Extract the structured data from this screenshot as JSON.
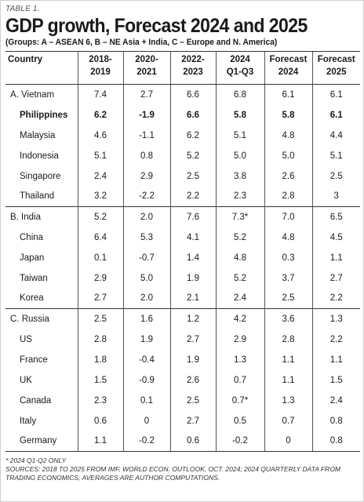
{
  "table_label": "TABLE 1.",
  "title": "GDP growth, Forecast 2024 and 2025",
  "subtitle": "(Groups: A – ASEAN 6, B – NE Asia + India, C – Europe and N. America)",
  "headers": {
    "country": "Country",
    "c1_line1": "2018-",
    "c1_line2": "2019",
    "c2_line1": "2020-",
    "c2_line2": "2021",
    "c3_line1": "2022-",
    "c3_line2": "2023",
    "c4_line1": "2024",
    "c4_line2": "Q1-Q3",
    "c5_line1": "Forecast",
    "c5_line2": "2024",
    "c6_line1": "Forecast",
    "c6_line2": "2025"
  },
  "rows": [
    {
      "country": "A. Vietnam",
      "v1": "7.4",
      "v2": "2.7",
      "v3": "6.6",
      "v4": "6.8",
      "v5": "6.1",
      "v6": "6.1"
    },
    {
      "country": "Philippines",
      "v1": "6.2",
      "v2": "-1.9",
      "v3": "6.6",
      "v4": "5.8",
      "v5": "5.8",
      "v6": "6.1"
    },
    {
      "country": "Malaysia",
      "v1": "4.6",
      "v2": "-1.1",
      "v3": "6.2",
      "v4": "5.1",
      "v5": "4.8",
      "v6": "4.4"
    },
    {
      "country": "Indonesia",
      "v1": "5.1",
      "v2": "0.8",
      "v3": "5.2",
      "v4": "5.0",
      "v5": "5.0",
      "v6": "5.1"
    },
    {
      "country": "Singapore",
      "v1": "2.4",
      "v2": "2.9",
      "v3": "2.5",
      "v4": "3.8",
      "v5": "2.6",
      "v6": "2.5"
    },
    {
      "country": "Thailand",
      "v1": "3.2",
      "v2": "-2.2",
      "v3": "2.2",
      "v4": "2.3",
      "v5": "2.8",
      "v6": "3"
    },
    {
      "country": "B. India",
      "v1": "5.2",
      "v2": "2.0",
      "v3": "7.6",
      "v4": "7.3*",
      "v5": "7.0",
      "v6": "6.5"
    },
    {
      "country": "China",
      "v1": "6.4",
      "v2": "5.3",
      "v3": "4.1",
      "v4": "5.2",
      "v5": "4.8",
      "v6": "4.5"
    },
    {
      "country": "Japan",
      "v1": "0.1",
      "v2": "-0.7",
      "v3": "1.4",
      "v4": "4.8",
      "v5": "0.3",
      "v6": "1.1"
    },
    {
      "country": "Taiwan",
      "v1": "2.9",
      "v2": "5.0",
      "v3": "1.9",
      "v4": "5.2",
      "v5": "3.7",
      "v6": "2.7"
    },
    {
      "country": "Korea",
      "v1": "2.7",
      "v2": "2.0",
      "v3": "2.1",
      "v4": "2.4",
      "v5": "2.5",
      "v6": "2.2"
    },
    {
      "country": "C. Russia",
      "v1": "2.5",
      "v2": "1.6",
      "v3": "1.2",
      "v4": "4.2",
      "v5": "3.6",
      "v6": "1.3"
    },
    {
      "country": "US",
      "v1": "2.8",
      "v2": "1.9",
      "v3": "2.7",
      "v4": "2.9",
      "v5": "2.8",
      "v6": "2.2"
    },
    {
      "country": "France",
      "v1": "1.8",
      "v2": "-0.4",
      "v3": "1.9",
      "v4": "1.3",
      "v5": "1.1",
      "v6": "1.1"
    },
    {
      "country": "UK",
      "v1": "1.5",
      "v2": "-0.9",
      "v3": "2.6",
      "v4": "0.7",
      "v5": "1.1",
      "v6": "1.5"
    },
    {
      "country": "Canada",
      "v1": "2.3",
      "v2": "0.1",
      "v3": "2.5",
      "v4": "0.7*",
      "v5": "1.3",
      "v6": "2.4"
    },
    {
      "country": "Italy",
      "v1": "0.6",
      "v2": "0",
      "v3": "2.7",
      "v4": "0.5",
      "v5": "0.7",
      "v6": "0.8"
    },
    {
      "country": "Germany",
      "v1": "1.1",
      "v2": "-0.2",
      "v3": "0.6",
      "v4": "-0.2",
      "v5": "0",
      "v6": "0.8"
    }
  ],
  "footnote_1": "* 2024 Q1-Q2 only",
  "footnote_2": "Sources: 2018 to 2025 from IMF, World Econ. Outlook, Oct. 2024; 2024 quarterly data from Trading Economics; averages are author computations."
}
